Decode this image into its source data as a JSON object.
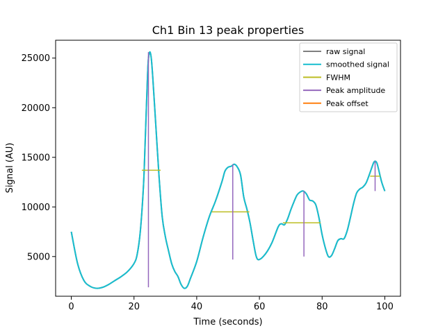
{
  "chart_data": {
    "type": "line",
    "title": "Ch1 Bin 13 peak properties",
    "xlabel": "Time (seconds)",
    "ylabel": "Signal (AU)",
    "xlim": [
      -5,
      105
    ],
    "ylim": [
      1000,
      26800
    ],
    "xticks": [
      0,
      20,
      40,
      60,
      80,
      100
    ],
    "yticks": [
      5000,
      10000,
      15000,
      20000,
      25000
    ],
    "grid": false,
    "legend_position": "top-right",
    "colors": {
      "raw": "#7f7f7f",
      "smoothed": "#17becf",
      "fwhm": "#bcbd22",
      "amplitude": "#9467bd",
      "offset": "#ff7f0e"
    },
    "series": [
      {
        "name": "raw signal",
        "x": [
          0,
          2,
          4,
          6,
          8,
          10,
          12,
          14,
          16,
          18,
          20,
          21,
          22,
          23,
          23.5,
          24,
          24.5,
          25,
          25.5,
          26,
          27,
          28,
          29,
          30,
          31,
          32,
          33,
          34,
          35,
          36,
          37,
          38,
          40,
          42,
          44,
          46,
          48,
          49,
          50,
          51,
          52,
          53,
          54,
          55,
          56,
          57,
          58,
          59,
          60,
          62,
          64,
          66,
          67,
          68,
          69,
          70,
          71,
          72,
          73,
          74,
          75,
          76,
          77,
          78,
          79,
          80,
          81,
          82,
          83,
          84,
          85,
          86,
          87,
          88,
          89,
          90,
          91,
          92,
          93,
          94,
          95,
          96,
          96.5,
          97,
          97.5,
          98,
          99,
          100
        ],
        "y": [
          7500,
          4300,
          2600,
          2000,
          1800,
          1900,
          2200,
          2600,
          3000,
          3500,
          4300,
          5200,
          7500,
          12000,
          16000,
          20500,
          24500,
          25600,
          25000,
          23000,
          18000,
          13000,
          9000,
          7000,
          5600,
          4300,
          3500,
          3000,
          2200,
          1800,
          2000,
          2800,
          4500,
          6900,
          9000,
          10600,
          12500,
          13600,
          14000,
          14100,
          14300,
          14000,
          13200,
          11000,
          9800,
          8400,
          6600,
          5000,
          4700,
          5300,
          6400,
          8000,
          8300,
          8200,
          8800,
          9700,
          10500,
          11200,
          11500,
          11600,
          11300,
          10700,
          10600,
          10200,
          8900,
          7200,
          5900,
          5000,
          5100,
          5800,
          6600,
          6800,
          6800,
          7600,
          8900,
          10300,
          11400,
          11800,
          12000,
          12400,
          13200,
          14100,
          14500,
          14600,
          14400,
          13800,
          12500,
          11600
        ]
      },
      {
        "name": "smoothed signal",
        "x": [
          0,
          2,
          4,
          6,
          8,
          10,
          12,
          14,
          16,
          18,
          20,
          21,
          22,
          23,
          23.5,
          24,
          24.5,
          25,
          25.5,
          26,
          27,
          28,
          29,
          30,
          31,
          32,
          33,
          34,
          35,
          36,
          37,
          38,
          40,
          42,
          44,
          46,
          48,
          49,
          50,
          51,
          52,
          53,
          54,
          55,
          56,
          57,
          58,
          59,
          60,
          62,
          64,
          66,
          67,
          68,
          69,
          70,
          71,
          72,
          73,
          74,
          75,
          76,
          77,
          78,
          79,
          80,
          81,
          82,
          83,
          84,
          85,
          86,
          87,
          88,
          89,
          90,
          91,
          92,
          93,
          94,
          95,
          96,
          96.5,
          97,
          97.5,
          98,
          99,
          100
        ],
        "y": [
          7500,
          4300,
          2600,
          2000,
          1800,
          1900,
          2200,
          2600,
          3000,
          3500,
          4300,
          5200,
          7500,
          12000,
          16000,
          20500,
          24500,
          25600,
          25000,
          23000,
          18000,
          13000,
          9000,
          7000,
          5600,
          4300,
          3500,
          3000,
          2200,
          1800,
          2000,
          2800,
          4500,
          6900,
          9000,
          10600,
          12500,
          13600,
          14000,
          14100,
          14300,
          14000,
          13200,
          11000,
          9800,
          8400,
          6600,
          5000,
          4700,
          5300,
          6400,
          8000,
          8300,
          8200,
          8800,
          9700,
          10500,
          11200,
          11500,
          11600,
          11300,
          10700,
          10600,
          10200,
          8900,
          7200,
          5900,
          5000,
          5100,
          5800,
          6600,
          6800,
          6800,
          7600,
          8900,
          10300,
          11400,
          11800,
          12000,
          12400,
          13200,
          14100,
          14500,
          14600,
          14400,
          13800,
          12500,
          11600
        ]
      }
    ],
    "fwhm": [
      {
        "y": 13700,
        "x_start": 22.5,
        "x_end": 28.5
      },
      {
        "y": 9500,
        "x_start": 44.8,
        "x_end": 56.8
      },
      {
        "y": 8400,
        "x_start": 67.5,
        "x_end": 79.5
      },
      {
        "y": 13100,
        "x_start": 95.3,
        "x_end": 98.5
      }
    ],
    "peak_amplitude": [
      {
        "x": 24.6,
        "y_start": 1900,
        "y_end": 25600
      },
      {
        "x": 51.5,
        "y_start": 4700,
        "y_end": 14300
      },
      {
        "x": 74.2,
        "y_start": 5000,
        "y_end": 11600
      },
      {
        "x": 96.9,
        "y_start": 11600,
        "y_end": 14600
      }
    ],
    "peak_offset": [],
    "legend": [
      {
        "label": "raw signal",
        "color": "#7f7f7f"
      },
      {
        "label": "smoothed signal",
        "color": "#17becf"
      },
      {
        "label": "FWHM",
        "color": "#bcbd22"
      },
      {
        "label": "Peak amplitude",
        "color": "#9467bd"
      },
      {
        "label": "Peak offset",
        "color": "#ff7f0e"
      }
    ]
  }
}
